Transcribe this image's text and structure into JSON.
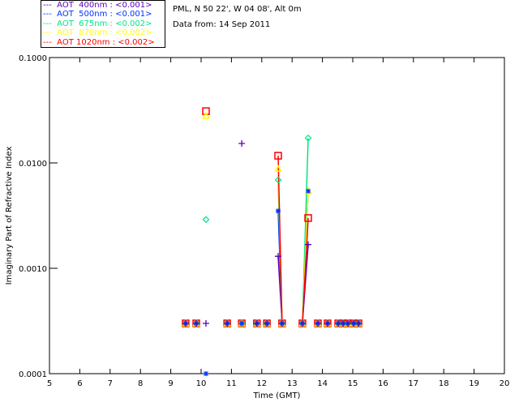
{
  "header": {
    "site": "PML, N 50 22', W 04 08', Alt 0m",
    "date": "Data from: 14 Sep 2011"
  },
  "chart_data": {
    "type": "scatter",
    "xlabel": "Time (GMT)",
    "ylabel": "Imaginary Part of Refractive Index",
    "xlim": [
      5,
      20
    ],
    "ylim": [
      0.0001,
      0.1
    ],
    "yscale": "log",
    "x_ticks": [
      "5",
      "6",
      "7",
      "8",
      "9",
      "10",
      "11",
      "12",
      "13",
      "14",
      "15",
      "16",
      "17",
      "18",
      "19",
      "20"
    ],
    "y_ticks": [
      {
        "value": 0.1,
        "label": "0.1000"
      },
      {
        "value": 0.01,
        "label": "0.0100"
      },
      {
        "value": 0.001,
        "label": "0.0010"
      },
      {
        "value": 0.0001,
        "label": "0.0001"
      }
    ],
    "legend_position": "top-left, outside",
    "line_max_gap_hours": 0.25,
    "series": [
      {
        "name": "AOT  400nm : <0.001>",
        "color": "#5a00b4",
        "marker": "plus",
        "points": [
          [
            9.49,
            0.0003
          ],
          [
            9.84,
            0.0003
          ],
          [
            10.16,
            0.0003
          ],
          [
            10.86,
            0.0003
          ],
          [
            11.34,
            0.0153
          ],
          [
            11.84,
            0.0003
          ],
          [
            12.17,
            0.0003
          ],
          [
            12.54,
            0.0013
          ],
          [
            12.67,
            0.0003
          ],
          [
            13.34,
            0.0003
          ],
          [
            13.53,
            0.00168
          ],
          [
            13.85,
            0.0003
          ],
          [
            14.17,
            0.0003
          ],
          [
            14.52,
            0.0003
          ],
          [
            14.68,
            0.0003
          ],
          [
            14.84,
            0.0003
          ],
          [
            15.03,
            0.0003
          ],
          [
            15.19,
            0.0003
          ]
        ]
      },
      {
        "name": "AOT  500nm : <0.001>",
        "color": "#0032ff",
        "marker": "asterisk",
        "points": [
          [
            9.49,
            0.0003
          ],
          [
            9.84,
            0.0003
          ],
          [
            10.16,
            0.0001
          ],
          [
            10.86,
            0.0003
          ],
          [
            11.34,
            0.0003
          ],
          [
            11.84,
            0.0003
          ],
          [
            12.17,
            0.0003
          ],
          [
            12.54,
            0.0035
          ],
          [
            12.67,
            0.0003
          ],
          [
            13.34,
            0.0003
          ],
          [
            13.53,
            0.0054
          ],
          [
            13.85,
            0.0003
          ],
          [
            14.17,
            0.0003
          ],
          [
            14.52,
            0.0003
          ],
          [
            14.68,
            0.0003
          ],
          [
            14.84,
            0.0003
          ],
          [
            15.03,
            0.0003
          ],
          [
            15.19,
            0.0003
          ]
        ]
      },
      {
        "name": "AOT  675nm : <0.002>",
        "color": "#00e682",
        "marker": "diamond",
        "points": [
          [
            9.49,
            0.0003
          ],
          [
            9.84,
            0.0003
          ],
          [
            10.16,
            0.0029
          ],
          [
            10.86,
            0.0003
          ],
          [
            11.34,
            0.0003
          ],
          [
            11.84,
            0.0003
          ],
          [
            12.17,
            0.0003
          ],
          [
            12.54,
            0.0069
          ],
          [
            12.67,
            0.0003
          ],
          [
            13.34,
            0.0003
          ],
          [
            13.53,
            0.0172
          ],
          [
            13.85,
            0.0003
          ],
          [
            14.17,
            0.0003
          ],
          [
            14.52,
            0.0003
          ],
          [
            14.68,
            0.0003
          ],
          [
            14.84,
            0.0003
          ],
          [
            15.03,
            0.0003
          ],
          [
            15.19,
            0.0003
          ]
        ]
      },
      {
        "name": "AOT  870nm : <0.002>",
        "color": "#ffff00",
        "marker": "triangle",
        "points": [
          [
            9.49,
            0.0003
          ],
          [
            9.84,
            0.0003
          ],
          [
            10.16,
            0.028
          ],
          [
            10.86,
            0.0003
          ],
          [
            11.34,
            0.0003
          ],
          [
            11.84,
            0.0003
          ],
          [
            12.17,
            0.0003
          ],
          [
            12.54,
            0.0088
          ],
          [
            12.67,
            0.0003
          ],
          [
            13.34,
            0.0003
          ],
          [
            13.53,
            0.0054
          ],
          [
            13.85,
            0.0003
          ],
          [
            14.17,
            0.0003
          ],
          [
            14.52,
            0.0003
          ],
          [
            14.68,
            0.0003
          ],
          [
            14.84,
            0.0003
          ],
          [
            15.03,
            0.0003
          ],
          [
            15.19,
            0.0003
          ]
        ]
      },
      {
        "name": "AOT 1020nm : <0.002>",
        "color": "#ff0000",
        "marker": "square",
        "points": [
          [
            9.49,
            0.0003
          ],
          [
            9.84,
            0.0003
          ],
          [
            10.16,
            0.031
          ],
          [
            10.86,
            0.0003
          ],
          [
            11.34,
            0.0003
          ],
          [
            11.84,
            0.0003
          ],
          [
            12.17,
            0.0003
          ],
          [
            12.54,
            0.0117
          ],
          [
            12.67,
            0.0003
          ],
          [
            13.34,
            0.0003
          ],
          [
            13.53,
            0.003
          ],
          [
            13.85,
            0.0003
          ],
          [
            14.17,
            0.0003
          ],
          [
            14.52,
            0.0003
          ],
          [
            14.68,
            0.0003
          ],
          [
            14.84,
            0.0003
          ],
          [
            15.03,
            0.0003
          ],
          [
            15.19,
            0.0003
          ]
        ]
      }
    ]
  }
}
